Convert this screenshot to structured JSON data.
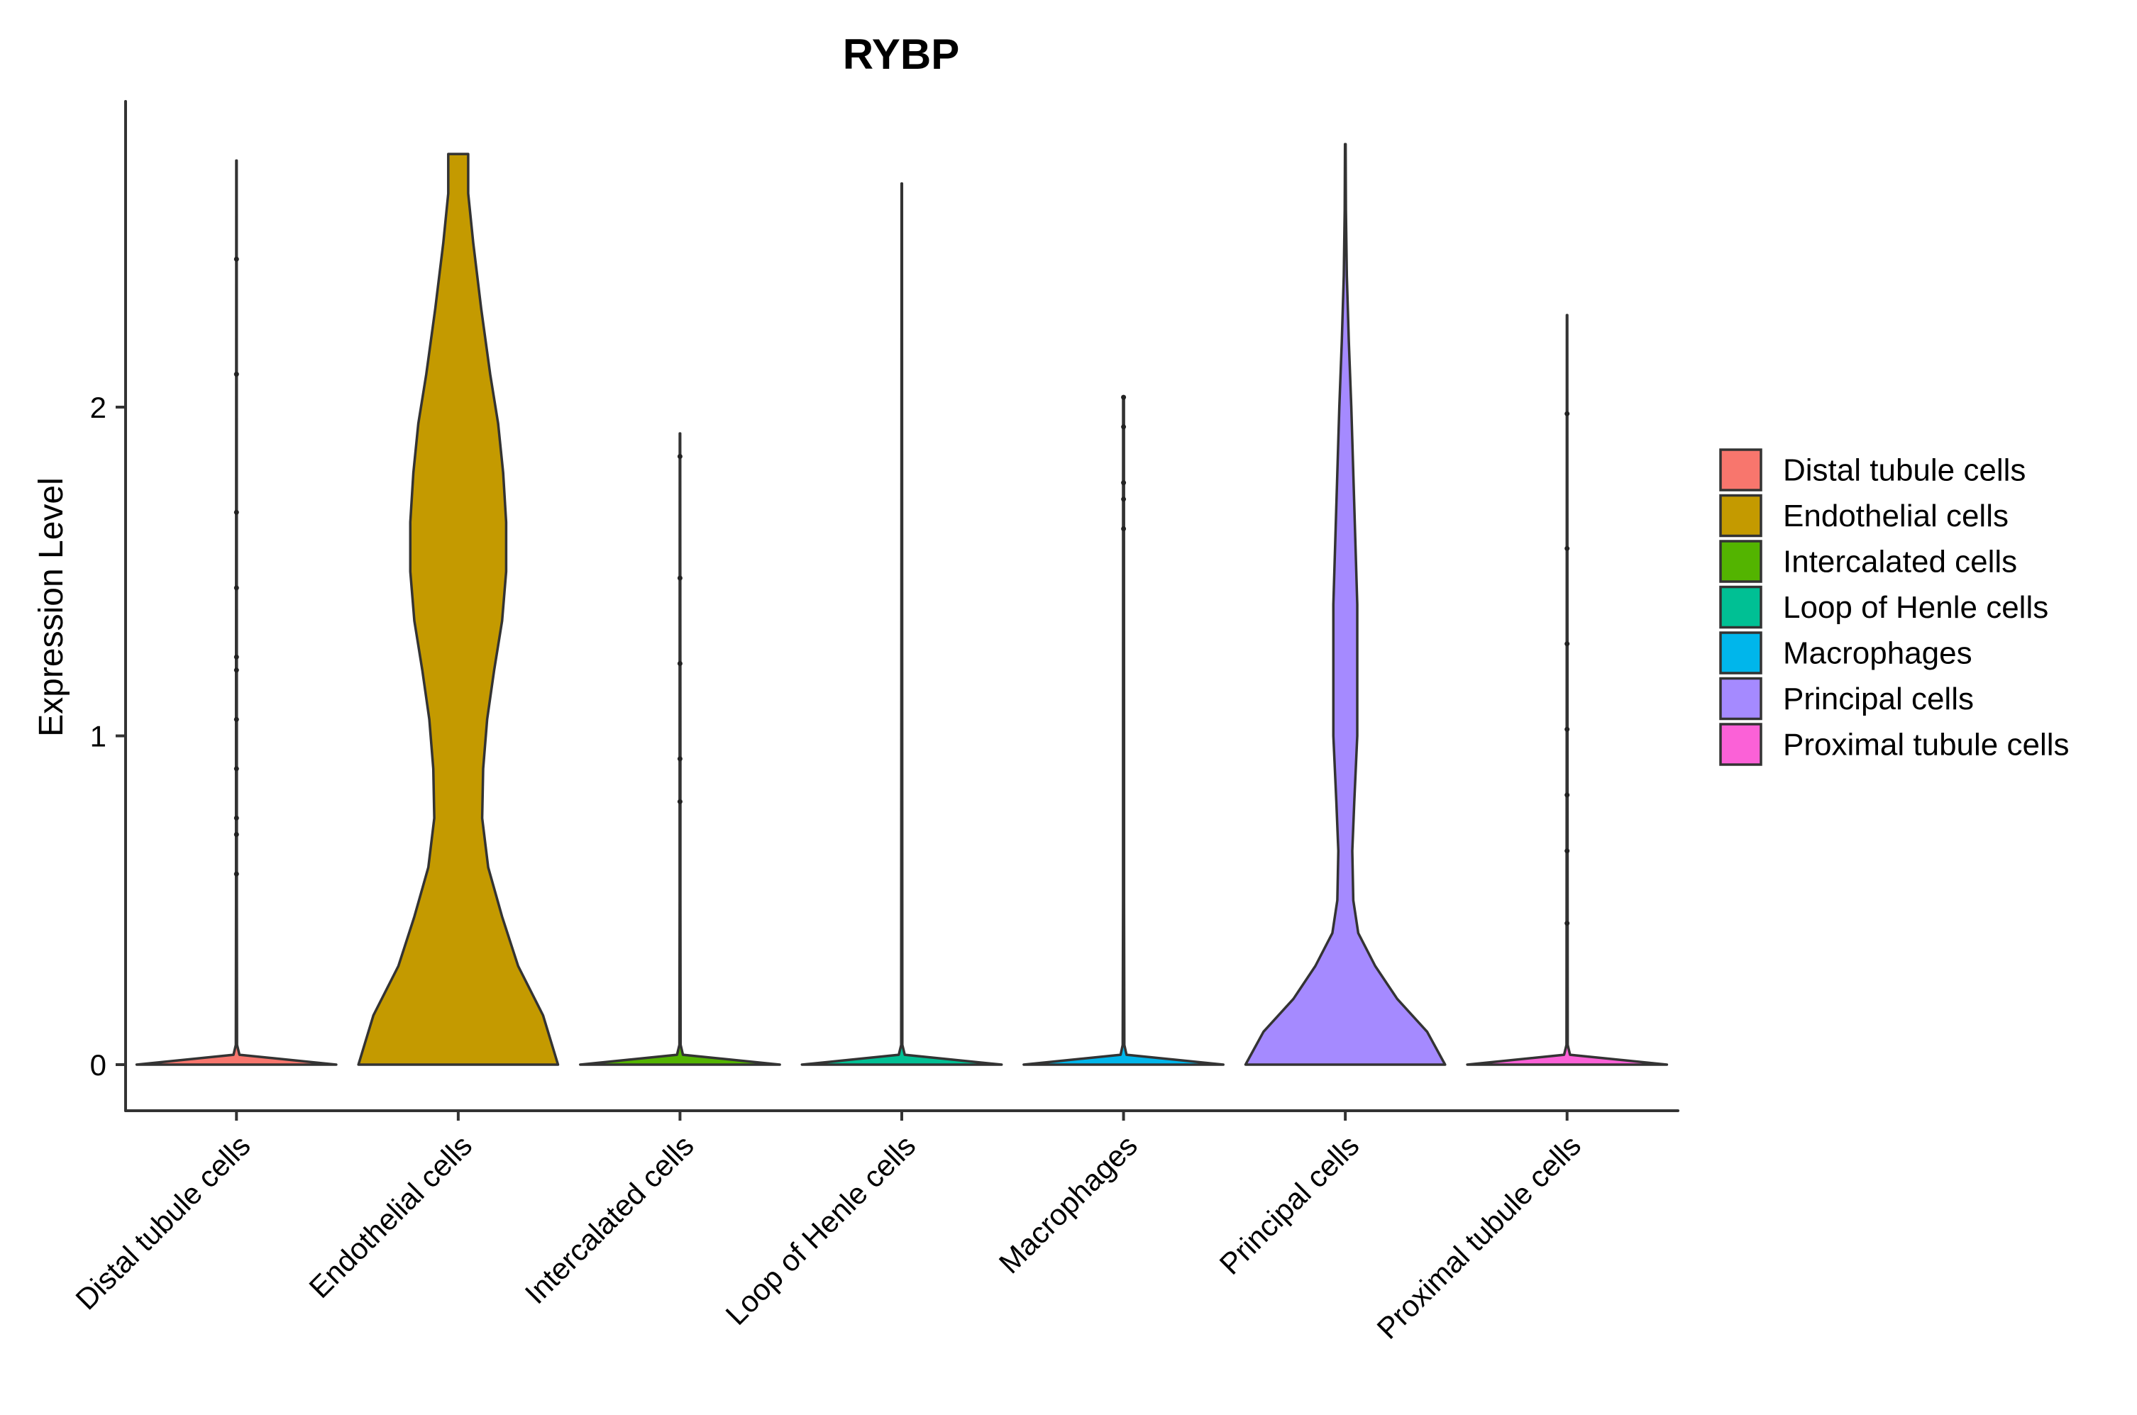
{
  "chart_data": {
    "type": "violin",
    "title": "RYBP",
    "xlabel": "",
    "ylabel": "Expression Level",
    "ylim": [
      -0.14,
      2.9
    ],
    "yticks": [
      0,
      1,
      2
    ],
    "grid": false,
    "legend_position": "right",
    "categories": [
      "Distal tubule cells",
      "Endothelial cells",
      "Intercalated cells",
      "Loop of Henle cells",
      "Macrophages",
      "Principal cells",
      "Proximal tubule cells"
    ],
    "colors": [
      "#F8766D",
      "#C49A00",
      "#53B400",
      "#00C094",
      "#00B6EB",
      "#A58AFF",
      "#FB61D7"
    ],
    "series": [
      {
        "name": "Distal tubule cells",
        "min": 0,
        "max": 2.75,
        "density": [
          [
            0,
            1.0
          ],
          [
            0.03,
            0.03
          ],
          [
            0.06,
            0.006
          ],
          [
            0.5,
            0.004
          ],
          [
            1.0,
            0.004
          ],
          [
            2.0,
            0.003
          ],
          [
            2.75,
            0.002
          ]
        ],
        "outliers": [
          2.45,
          2.1,
          1.68,
          1.45,
          1.24,
          1.2,
          1.05,
          0.9,
          0.75,
          0.7,
          0.58
        ]
      },
      {
        "name": "Endothelial cells",
        "min": 0,
        "max": 2.77,
        "density": [
          [
            0,
            1.0
          ],
          [
            0.15,
            0.85
          ],
          [
            0.3,
            0.6
          ],
          [
            0.45,
            0.44
          ],
          [
            0.6,
            0.3
          ],
          [
            0.75,
            0.24
          ],
          [
            0.9,
            0.25
          ],
          [
            1.05,
            0.29
          ],
          [
            1.2,
            0.36
          ],
          [
            1.35,
            0.44
          ],
          [
            1.5,
            0.48
          ],
          [
            1.65,
            0.48
          ],
          [
            1.8,
            0.45
          ],
          [
            1.95,
            0.4
          ],
          [
            2.1,
            0.32
          ],
          [
            2.3,
            0.23
          ],
          [
            2.5,
            0.15
          ],
          [
            2.65,
            0.1
          ],
          [
            2.77,
            0.1
          ]
        ],
        "outliers": []
      },
      {
        "name": "Intercalated cells",
        "min": 0,
        "max": 1.92,
        "density": [
          [
            0,
            1.0
          ],
          [
            0.03,
            0.03
          ],
          [
            0.06,
            0.006
          ],
          [
            0.5,
            0.004
          ],
          [
            1.0,
            0.004
          ],
          [
            1.92,
            0.002
          ]
        ],
        "outliers": [
          1.85,
          1.48,
          1.22,
          0.93,
          0.8
        ]
      },
      {
        "name": "Loop of Henle cells",
        "min": 0,
        "max": 2.68,
        "density": [
          [
            0,
            1.0
          ],
          [
            0.03,
            0.03
          ],
          [
            0.06,
            0.006
          ],
          [
            1.0,
            0.004
          ],
          [
            2.0,
            0.003
          ],
          [
            2.68,
            0.002
          ]
        ],
        "outliers": []
      },
      {
        "name": "Macrophages",
        "min": 0,
        "max": 2.03,
        "density": [
          [
            0,
            1.0
          ],
          [
            0.03,
            0.03
          ],
          [
            0.06,
            0.008
          ],
          [
            0.5,
            0.005
          ],
          [
            1.0,
            0.005
          ],
          [
            2.03,
            0.004
          ]
        ],
        "outliers": [
          2.03,
          1.94,
          1.77,
          1.72,
          1.63
        ]
      },
      {
        "name": "Principal cells",
        "min": 0,
        "max": 2.8,
        "density": [
          [
            0,
            1.0
          ],
          [
            0.1,
            0.82
          ],
          [
            0.2,
            0.52
          ],
          [
            0.3,
            0.3
          ],
          [
            0.4,
            0.13
          ],
          [
            0.5,
            0.08
          ],
          [
            0.65,
            0.07
          ],
          [
            0.8,
            0.09
          ],
          [
            1.0,
            0.12
          ],
          [
            1.2,
            0.12
          ],
          [
            1.4,
            0.12
          ],
          [
            1.6,
            0.1
          ],
          [
            1.8,
            0.08
          ],
          [
            2.0,
            0.06
          ],
          [
            2.2,
            0.035
          ],
          [
            2.4,
            0.015
          ],
          [
            2.6,
            0.006
          ],
          [
            2.8,
            0.003
          ]
        ],
        "outliers": []
      },
      {
        "name": "Proximal tubule cells",
        "min": 0,
        "max": 2.28,
        "density": [
          [
            0,
            1.0
          ],
          [
            0.03,
            0.03
          ],
          [
            0.06,
            0.006
          ],
          [
            1.0,
            0.004
          ],
          [
            2.28,
            0.002
          ]
        ],
        "outliers": [
          1.98,
          1.57,
          1.28,
          1.02,
          0.82,
          0.65,
          0.43
        ]
      }
    ]
  }
}
